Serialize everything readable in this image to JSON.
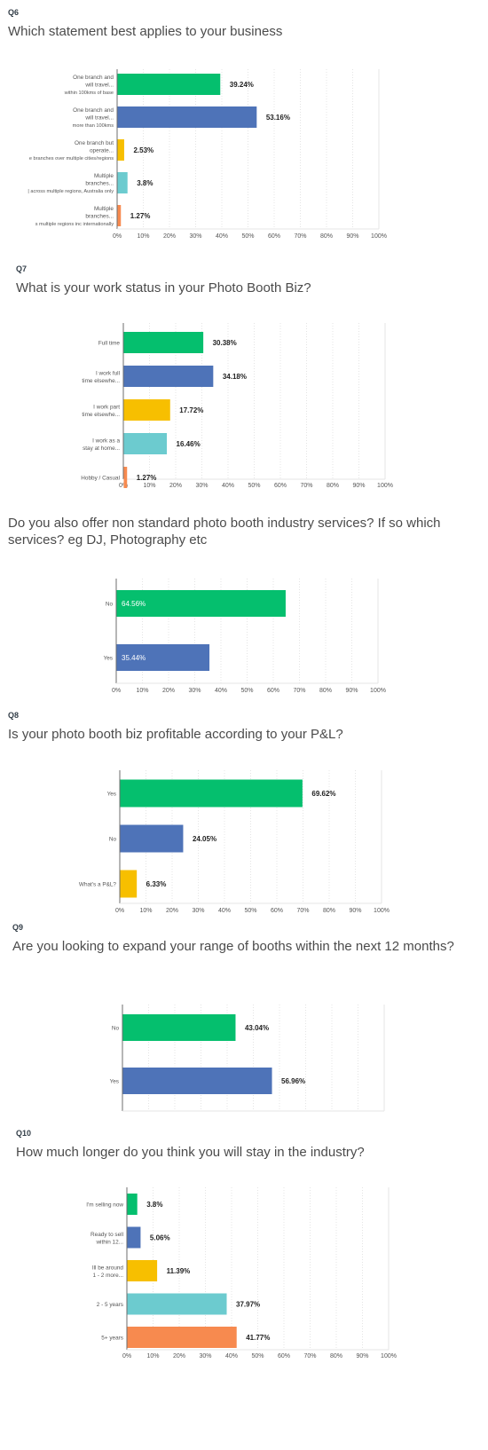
{
  "colors": [
    "#05bf6e",
    "#4e73b8",
    "#f7bf00",
    "#6ccbcf",
    "#f78a4f"
  ],
  "x_ticks": [
    "0%",
    "10%",
    "20%",
    "30%",
    "40%",
    "50%",
    "60%",
    "70%",
    "80%",
    "90%",
    "100%"
  ],
  "questions": [
    {
      "label": "Q6",
      "title": "Which statement best applies to your business"
    },
    {
      "label": "Q7",
      "title": "What is your work status in your Photo Booth Biz?"
    },
    {
      "label": "",
      "title_lines": [
        "Do you also offer non standard photo booth industry services? If so which",
        "services? eg DJ, Photography etc"
      ]
    },
    {
      "label": "Q8",
      "title": "Is your photo booth biz profitable according to your P&L?"
    },
    {
      "label": "Q9",
      "title": "Are you looking to expand your range of booths within the next 12 months?"
    },
    {
      "label": "Q10",
      "title": "How much longer do you think you will stay in the industry?"
    }
  ],
  "chart_data": [
    {
      "type": "bar",
      "orientation": "horizontal",
      "title": "Which statement best applies to your business",
      "categories": [
        [
          "One branch and",
          "will travel...",
          "within 100kms of base"
        ],
        [
          "One branch and",
          "will travel...",
          "more than 100kms"
        ],
        [
          "One branch but",
          "operate...",
          "e branches over multiple cities/regions"
        ],
        [
          "Multiple",
          "branches...",
          "| across multiple regions, Australia only"
        ],
        [
          "Multiple",
          "branches...",
          "s multiple regions inc internationally"
        ]
      ],
      "values": [
        39.24,
        53.16,
        2.53,
        3.8,
        1.27
      ],
      "value_labels": [
        "39.24%",
        "53.16%",
        "2.53%",
        "3.8%",
        "1.27%"
      ],
      "xlim": [
        0,
        100
      ],
      "show_ticks": true
    },
    {
      "type": "bar",
      "orientation": "horizontal",
      "title": "What is your work status in your Photo Booth Biz?",
      "categories": [
        [
          "Full time"
        ],
        [
          "I work full",
          "time elsewhe..."
        ],
        [
          "I work part",
          "time elsewhe..."
        ],
        [
          "I work as a",
          "stay at home..."
        ],
        [
          "Hobby / Casual"
        ]
      ],
      "values": [
        30.38,
        34.18,
        17.72,
        16.46,
        1.27
      ],
      "value_labels": [
        "30.38%",
        "34.18%",
        "17.72%",
        "16.46%",
        "1.27%"
      ],
      "xlim": [
        0,
        100
      ],
      "show_ticks": true
    },
    {
      "type": "bar",
      "orientation": "horizontal",
      "title": "Do you also offer non standard photo booth industry services? If so which services? eg DJ, Photography etc",
      "categories": [
        [
          "No"
        ],
        [
          "Yes"
        ]
      ],
      "values": [
        64.56,
        35.44
      ],
      "value_labels": [
        "64.56%",
        "35.44%"
      ],
      "labels_inside": true,
      "xlim": [
        0,
        100
      ],
      "show_ticks": true
    },
    {
      "type": "bar",
      "orientation": "horizontal",
      "title": "Is your photo booth biz profitable according to your P&L?",
      "categories": [
        [
          "Yes"
        ],
        [
          "No"
        ],
        [
          "What's a P&L?"
        ]
      ],
      "values": [
        69.62,
        24.05,
        6.33
      ],
      "value_labels": [
        "69.62%",
        "24.05%",
        "6.33%"
      ],
      "xlim": [
        0,
        100
      ],
      "show_ticks": true
    },
    {
      "type": "bar",
      "orientation": "horizontal",
      "title": "Are you looking to expand your range of booths within the next 12 months?",
      "categories": [
        [
          "No"
        ],
        [
          "Yes"
        ]
      ],
      "values": [
        43.04,
        56.96
      ],
      "value_labels": [
        "43.04%",
        "56.96%"
      ],
      "xlim": [
        0,
        100
      ],
      "show_ticks": false
    },
    {
      "type": "bar",
      "orientation": "horizontal",
      "title": "How much longer do you think you will stay in the industry?",
      "categories": [
        [
          "I'm selling now"
        ],
        [
          "Ready to sell",
          "within 12..."
        ],
        [
          "Ill be around",
          "1 - 2 more..."
        ],
        [
          "2 - 5 years"
        ],
        [
          "5+ years"
        ]
      ],
      "values": [
        3.8,
        5.06,
        11.39,
        37.97,
        41.77
      ],
      "value_labels": [
        "3.8%",
        "5.06%",
        "11.39%",
        "37.97%",
        "41.77%"
      ],
      "xlim": [
        0,
        100
      ],
      "show_ticks": true
    }
  ]
}
